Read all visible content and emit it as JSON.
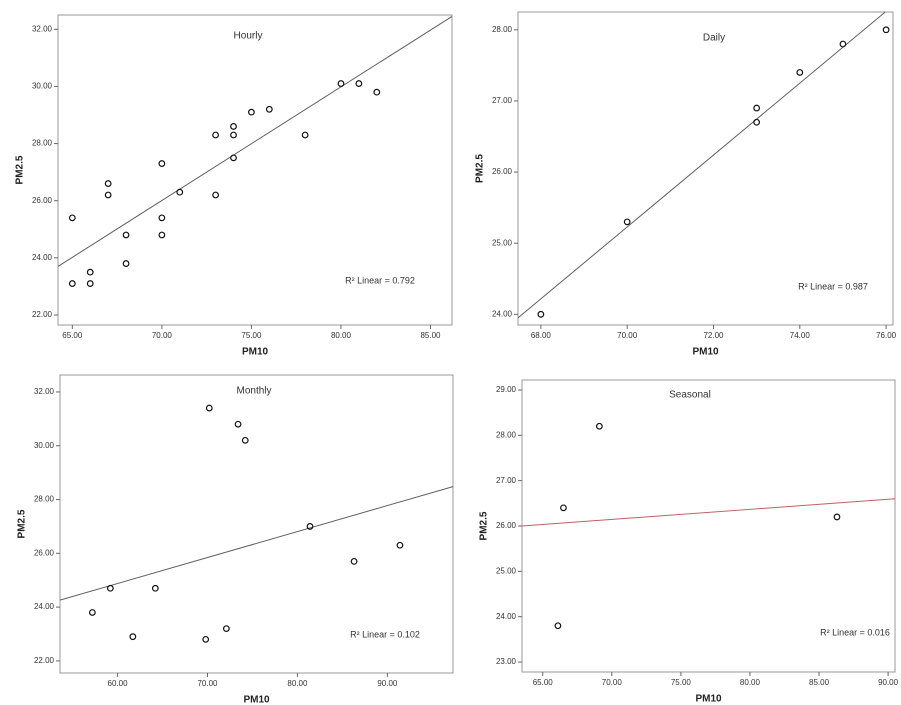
{
  "chart_data": [
    {
      "type": "scatter",
      "title": "Hourly",
      "x_label": "PM10",
      "y_label": "PM2.5",
      "annotation": "R² Linear = 0.792",
      "x": [
        65,
        65,
        66,
        66,
        67,
        67,
        68,
        68,
        70,
        70,
        70,
        71,
        73,
        73,
        74,
        74,
        74,
        75,
        76,
        78,
        80,
        81,
        82
      ],
      "values": [
        23.1,
        25.4,
        23.5,
        23.1,
        26.6,
        26.2,
        24.8,
        23.8,
        27.3,
        25.4,
        24.8,
        26.3,
        28.3,
        26.2,
        28.6,
        28.3,
        27.5,
        29.1,
        29.2,
        28.3,
        30.1,
        30.1,
        29.8
      ],
      "fit_line": {
        "x": [
          64.2,
          86.2
        ],
        "y": [
          23.7,
          32.45
        ],
        "color": "#606060"
      },
      "xlim": [
        64.2,
        86.2
      ],
      "ylim": [
        21.65,
        32.5
      ],
      "xticks": [
        {
          "value": 65,
          "label": "65.00"
        },
        {
          "value": 70,
          "label": "70.00"
        },
        {
          "value": 75,
          "label": "75.00"
        },
        {
          "value": 80,
          "label": "80.00"
        },
        {
          "value": 85,
          "label": "85.00"
        }
      ],
      "yticks": [
        {
          "value": 22,
          "label": "22.00"
        },
        {
          "value": 24,
          "label": "24.00"
        },
        {
          "value": 26,
          "label": "26.00"
        },
        {
          "value": 28,
          "label": "28.00"
        },
        {
          "value": 30,
          "label": "30.00"
        },
        {
          "value": 32,
          "label": "32.00"
        }
      ]
    },
    {
      "type": "scatter",
      "title": "Daily",
      "x_label": "PM10",
      "y_label": "PM2.5",
      "annotation": "R² Linear = 0.987",
      "x": [
        68,
        70,
        73,
        73,
        74,
        75,
        76
      ],
      "values": [
        24.0,
        25.3,
        26.7,
        26.9,
        27.4,
        27.8,
        28.0
      ],
      "fit_line": {
        "x": [
          67.47,
          75.98
        ],
        "y": [
          23.95,
          28.25
        ],
        "color": "#606060"
      },
      "xlim": [
        67.47,
        76.16
      ],
      "ylim": [
        23.85,
        28.25
      ],
      "xticks": [
        {
          "value": 68,
          "label": "68.00"
        },
        {
          "value": 70,
          "label": "70.00"
        },
        {
          "value": 72,
          "label": "72.00"
        },
        {
          "value": 74,
          "label": "74.00"
        },
        {
          "value": 76,
          "label": "76.00"
        }
      ],
      "yticks": [
        {
          "value": 24,
          "label": "24.00"
        },
        {
          "value": 25,
          "label": "25.00"
        },
        {
          "value": 26,
          "label": "26.00"
        },
        {
          "value": 27,
          "label": "27.00"
        },
        {
          "value": 28,
          "label": "28.00"
        }
      ]
    },
    {
      "type": "scatter",
      "title": "Monthly",
      "x_label": "PM10",
      "y_label": "PM2.5",
      "annotation": "R² Linear = 0.102",
      "x": [
        57.2,
        59.2,
        61.7,
        64.2,
        70.2,
        69.8,
        72.1,
        73.4,
        74.2,
        81.4,
        86.3,
        91.4
      ],
      "values": [
        23.8,
        24.7,
        22.9,
        24.7,
        31.4,
        22.8,
        23.2,
        30.8,
        30.2,
        27.0,
        25.7,
        26.3
      ],
      "fit_line": {
        "x": [
          53.6,
          97.3
        ],
        "y": [
          24.26,
          28.48
        ],
        "color": "#606060"
      },
      "xlim": [
        53.6,
        97.3
      ],
      "ylim": [
        21.55,
        32.63
      ],
      "xticks": [
        {
          "value": 60,
          "label": "60.00"
        },
        {
          "value": 70,
          "label": "70.00"
        },
        {
          "value": 80,
          "label": "80.00"
        },
        {
          "value": 90,
          "label": "90.00"
        }
      ],
      "yticks": [
        {
          "value": 22,
          "label": "22.00"
        },
        {
          "value": 24,
          "label": "24.00"
        },
        {
          "value": 26,
          "label": "26.00"
        },
        {
          "value": 28,
          "label": "28.00"
        },
        {
          "value": 30,
          "label": "30.00"
        },
        {
          "value": 32,
          "label": "32.00"
        }
      ]
    },
    {
      "type": "scatter",
      "title": "Seasonal",
      "x_label": "PM10",
      "y_label": "PM2.5",
      "annotation": "R² Linear = 0.016",
      "x": [
        66.1,
        66.5,
        69.1,
        86.3
      ],
      "values": [
        23.8,
        26.4,
        28.2,
        26.2
      ],
      "fit_line": {
        "x": [
          63.5,
          90.5
        ],
        "y": [
          26.0,
          26.6
        ],
        "color": "#c06060"
      },
      "xlim": [
        63.5,
        90.5
      ],
      "ylim": [
        22.78,
        29.22
      ],
      "xticks": [
        {
          "value": 65,
          "label": "65.00"
        },
        {
          "value": 70,
          "label": "70.00"
        },
        {
          "value": 75,
          "label": "75.00"
        },
        {
          "value": 80,
          "label": "80.00"
        },
        {
          "value": 85,
          "label": "85.00"
        },
        {
          "value": 90,
          "label": "90.00"
        }
      ],
      "yticks": [
        {
          "value": 23,
          "label": "23.00"
        },
        {
          "value": 24,
          "label": "24.00"
        },
        {
          "value": 25,
          "label": "25.00"
        },
        {
          "value": 26,
          "label": "26.00"
        },
        {
          "value": 27,
          "label": "27.00"
        },
        {
          "value": 28,
          "label": "28.00"
        },
        {
          "value": 29,
          "label": "29.00"
        }
      ]
    }
  ]
}
